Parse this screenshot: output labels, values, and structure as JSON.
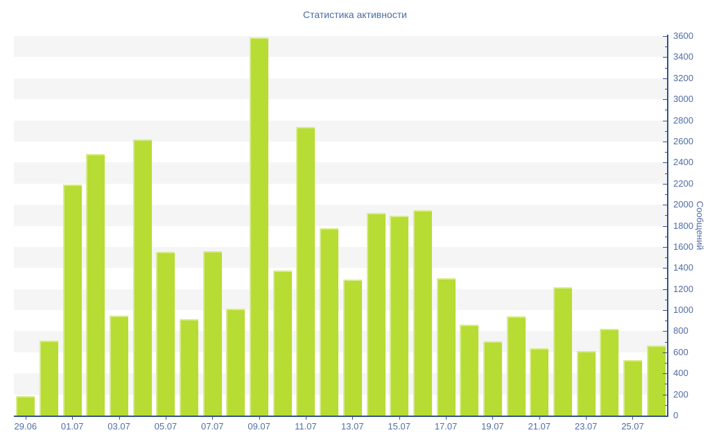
{
  "chart_data": {
    "type": "bar",
    "title": "Статистика активности",
    "xlabel": "",
    "ylabel": "Сообщений",
    "ylim": [
      0,
      3600
    ],
    "y_major_step": 200,
    "y_minor_step": 100,
    "grid": "alternating-horizontal-bands",
    "legend": false,
    "y_axis_side": "right",
    "x_tick_label_every": 2,
    "categories": [
      "29.06",
      "30.06",
      "01.07",
      "02.07",
      "03.07",
      "04.07",
      "05.07",
      "06.07",
      "07.07",
      "08.07",
      "09.07",
      "10.07",
      "11.07",
      "12.07",
      "13.07",
      "14.07",
      "15.07",
      "16.07",
      "17.07",
      "18.07",
      "19.07",
      "20.07",
      "21.07",
      "22.07",
      "23.07",
      "24.07",
      "25.07",
      "26.07"
    ],
    "values": [
      185,
      710,
      2190,
      2480,
      950,
      2620,
      1555,
      915,
      1560,
      1015,
      3590,
      1375,
      2740,
      1775,
      1290,
      1925,
      1895,
      1945,
      1300,
      865,
      705,
      940,
      640,
      1220,
      615,
      820,
      525,
      665
    ],
    "x_tick_labels": [
      "29.06",
      "01.07",
      "03.07",
      "05.07",
      "07.07",
      "09.07",
      "11.07",
      "13.07",
      "15.07",
      "17.07",
      "19.07",
      "21.07",
      "23.07",
      "25.07"
    ],
    "y_tick_labels": [
      "0",
      "200",
      "400",
      "600",
      "800",
      "1000",
      "1200",
      "1400",
      "1600",
      "1800",
      "2000",
      "2200",
      "2400",
      "2600",
      "2800",
      "3000",
      "3200",
      "3400",
      "3600"
    ]
  },
  "colors": {
    "bar_fill": "#b7dc33",
    "bar_highlight": "#d8eb8c",
    "band_gray": "#f5f5f5",
    "band_white": "#ffffff",
    "axis_line": "#33508c",
    "tick": "#33508c",
    "label_text": "#4f6ca6",
    "title_text": "#4a6d9e",
    "background": "#ffffff"
  }
}
